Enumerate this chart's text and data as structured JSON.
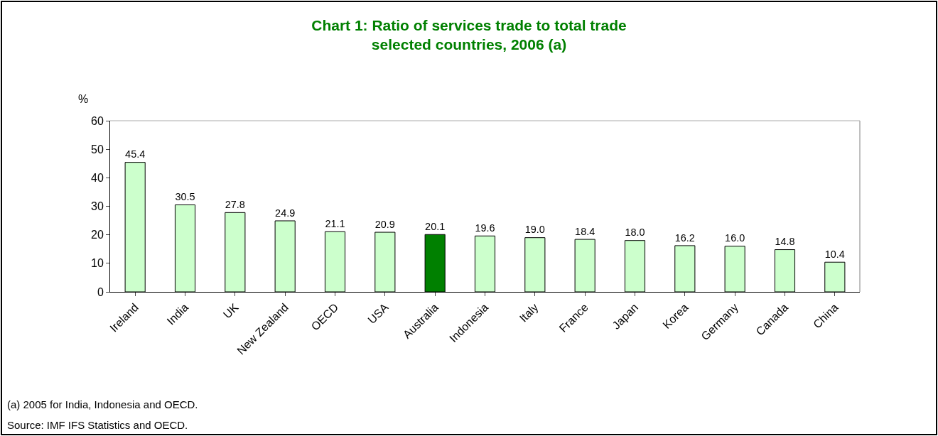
{
  "chart_data": {
    "type": "bar",
    "title": "Chart 1: Ratio of services trade to total trade\nselected countries, 2006 (a)",
    "ylabel": "%",
    "categories": [
      "Ireland",
      "India",
      "UK",
      "New Zealand",
      "OECD",
      "USA",
      "Australia",
      "Indonesia",
      "Italy",
      "France",
      "Japan",
      "Korea",
      "Germany",
      "Canada",
      "China"
    ],
    "values": [
      45.4,
      30.5,
      27.8,
      24.9,
      21.1,
      20.9,
      20.1,
      19.6,
      19.0,
      18.4,
      18.0,
      16.2,
      16.0,
      14.8,
      10.4
    ],
    "value_labels": [
      "45.4",
      "30.5",
      "27.8",
      "24.9",
      "21.1",
      "20.9",
      "20.1",
      "19.6",
      "19.0",
      "18.4",
      "18.0",
      "16.2",
      "16.0",
      "14.8",
      "10.4"
    ],
    "colors": [
      "#ccffcc",
      "#ccffcc",
      "#ccffcc",
      "#ccffcc",
      "#ccffcc",
      "#ccffcc",
      "#008000",
      "#ccffcc",
      "#ccffcc",
      "#ccffcc",
      "#ccffcc",
      "#ccffcc",
      "#ccffcc",
      "#ccffcc",
      "#ccffcc"
    ],
    "ylim": [
      0,
      60
    ],
    "yticks": [
      0,
      10,
      20,
      30,
      40,
      50,
      60
    ],
    "annotations": [
      "(a) 2005 for India, Indonesia and OECD.",
      "Source: IMF IFS Statistics and OECD."
    ]
  }
}
